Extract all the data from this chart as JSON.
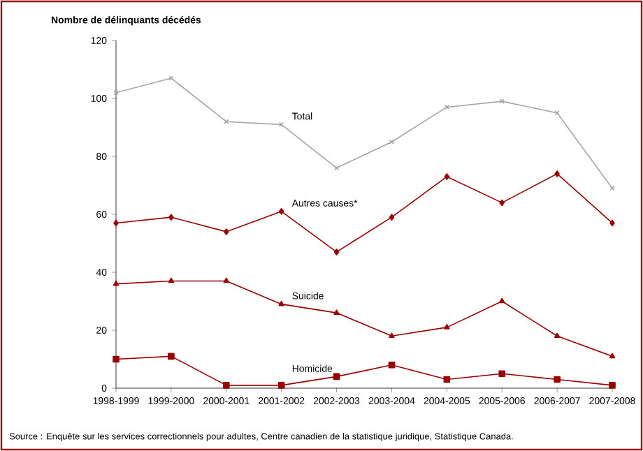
{
  "chart_data": {
    "type": "line",
    "ylabel": "Nombre de délinquants décédés",
    "categories": [
      "1998-1999",
      "1999-2000",
      "2000-2001",
      "2001-2002",
      "2002-2003",
      "2003-2004",
      "2004-2005",
      "2005-2006",
      "2006-2007",
      "2007-2008"
    ],
    "series": [
      {
        "name": "Total",
        "color": "#a6a6a6",
        "marker": "cross",
        "values": [
          102,
          107,
          92,
          91,
          76,
          85,
          97,
          99,
          95,
          69
        ]
      },
      {
        "name": "Autres causes*",
        "color": "#990000",
        "marker": "diamond",
        "values": [
          57,
          59,
          54,
          61,
          47,
          59,
          73,
          64,
          74,
          57
        ]
      },
      {
        "name": "Suicide",
        "color": "#990000",
        "marker": "triangle",
        "values": [
          36,
          37,
          37,
          29,
          26,
          18,
          21,
          30,
          18,
          11
        ]
      },
      {
        "name": "Homicide",
        "color": "#990000",
        "marker": "square",
        "values": [
          10,
          11,
          1,
          1,
          4,
          8,
          3,
          5,
          3,
          1
        ]
      }
    ],
    "ylim": [
      0,
      120
    ],
    "yticks": [
      0,
      20,
      40,
      60,
      80,
      100,
      120
    ],
    "grid": false,
    "legend": false,
    "line_style": "solid",
    "annotations": [
      "Source : Enquête sur les services correctionnels pour adultes, Centre canadien de la statistique juridique, Statistique Canada."
    ]
  }
}
